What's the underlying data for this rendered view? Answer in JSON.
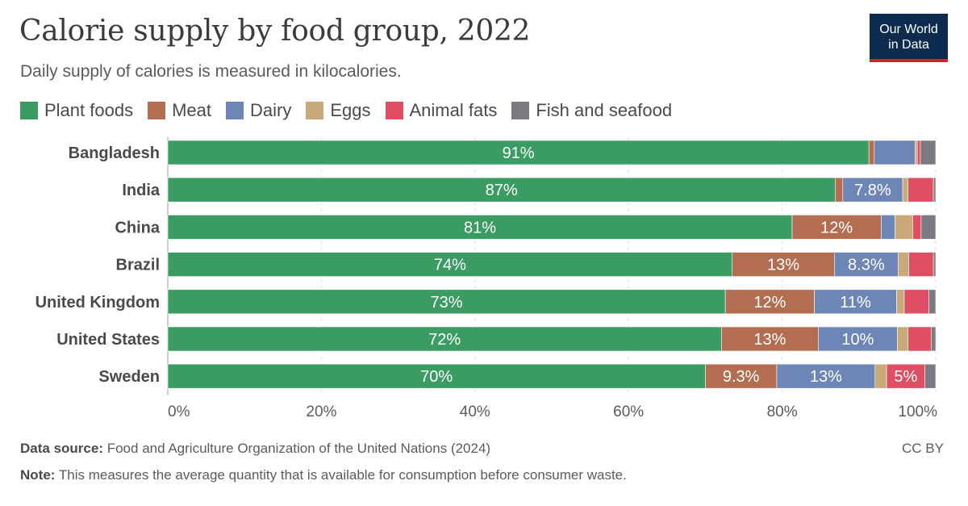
{
  "title": "Calorie supply by food group, 2022",
  "subtitle": "Daily supply of calories is measured in kilocalories.",
  "logo": {
    "line1": "Our World",
    "line2": "in Data"
  },
  "footer": {
    "source_label": "Data source:",
    "source_text": "Food and Agriculture Organization of the United Nations (2024)",
    "note_label": "Note:",
    "note_text": "This measures the average quantity that is available for consumption before consumer waste.",
    "license": "CC BY"
  },
  "chart_data": {
    "type": "bar",
    "orientation": "horizontal",
    "stacked": true,
    "xlim": [
      0,
      100
    ],
    "x_ticks": [
      "0%",
      "20%",
      "40%",
      "60%",
      "80%",
      "100%"
    ],
    "legend_position": "top",
    "categories": [
      "Bangladesh",
      "India",
      "China",
      "Brazil",
      "United Kingdom",
      "United States",
      "Sweden"
    ],
    "series": [
      {
        "name": "Plant foods",
        "color": "#3a9b63",
        "values": [
          91.3,
          86.9,
          81.3,
          73.5,
          72.6,
          72.1,
          70.0
        ],
        "labels": [
          "91%",
          "87%",
          "81%",
          "74%",
          "73%",
          "72%",
          "70%"
        ]
      },
      {
        "name": "Meat",
        "color": "#b36e52",
        "values": [
          0.7,
          1.0,
          11.6,
          13.3,
          11.6,
          12.6,
          9.3
        ],
        "labels": [
          "",
          "",
          "12%",
          "13%",
          "12%",
          "13%",
          "9.3%"
        ]
      },
      {
        "name": "Dairy",
        "color": "#6d86b6",
        "values": [
          5.3,
          7.8,
          1.8,
          8.3,
          10.7,
          10.3,
          12.8
        ],
        "labels": [
          "",
          "7.8%",
          "",
          "8.3%",
          "11%",
          "10%",
          "13%"
        ]
      },
      {
        "name": "Eggs",
        "color": "#c9a87a",
        "values": [
          0.3,
          0.7,
          2.3,
          1.4,
          1.0,
          1.4,
          1.5
        ],
        "labels": [
          "",
          "",
          "",
          "",
          "",
          "",
          ""
        ]
      },
      {
        "name": "Animal fats",
        "color": "#df4f64",
        "values": [
          0.4,
          3.3,
          1.1,
          3.2,
          3.2,
          3.0,
          5.0
        ],
        "labels": [
          "",
          "",
          "",
          "",
          "",
          "",
          "5%"
        ]
      },
      {
        "name": "Fish and seafood",
        "color": "#7a7a80",
        "values": [
          2.0,
          0.3,
          1.9,
          0.3,
          0.9,
          0.6,
          1.4
        ],
        "labels": [
          "",
          "",
          "",
          "",
          "",
          "",
          ""
        ]
      }
    ]
  }
}
